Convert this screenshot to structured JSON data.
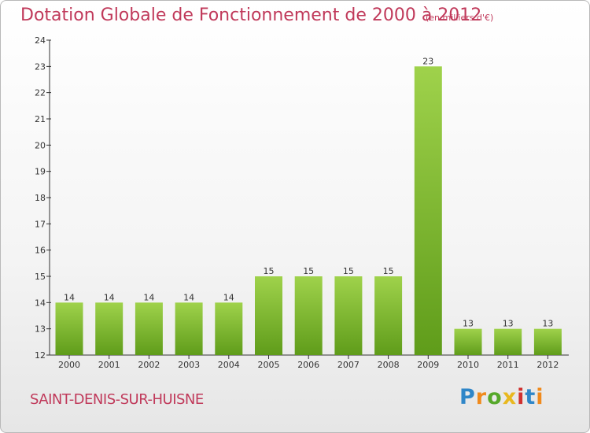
{
  "header": {
    "title": "Dotation Globale de Fonctionnement de 2000 à 2012",
    "subtitle": "(en milliers d'€)"
  },
  "footer": {
    "commune": "SAINT-DENIS-SUR-HUISNE",
    "logo_letters": [
      "P",
      "r",
      "o",
      "x",
      "i",
      "t",
      "i"
    ],
    "logo_colors": [
      "#2f86c8",
      "#f08a1c",
      "#56a82a",
      "#e8b81f",
      "#d0302f",
      "#2f86c8",
      "#f08a1c"
    ]
  },
  "colors": {
    "title": "#c0395a",
    "bar_light": "#9fd24b",
    "bar_dark": "#5f9c1a",
    "axis": "#333333"
  },
  "chart_data": {
    "type": "bar",
    "categories": [
      "2000",
      "2001",
      "2002",
      "2003",
      "2004",
      "2005",
      "2006",
      "2007",
      "2008",
      "2009",
      "2010",
      "2011",
      "2012"
    ],
    "values": [
      14,
      14,
      14,
      14,
      14,
      15,
      15,
      15,
      15,
      23,
      13,
      13,
      13
    ],
    "data_labels": [
      "14",
      "14",
      "14",
      "14",
      "14",
      "15",
      "15",
      "15",
      "15",
      "23",
      "13",
      "13",
      "13"
    ],
    "yticks": [
      "12",
      "13",
      "14",
      "15",
      "16",
      "17",
      "18",
      "19",
      "20",
      "21",
      "22",
      "23",
      "24"
    ],
    "ylim": [
      12,
      24
    ],
    "title": "Dotation Globale de Fonctionnement de 2000 à 2012",
    "subtitle": "(en milliers d'€)",
    "xlabel": "",
    "ylabel": "",
    "grid": false,
    "legend": false
  }
}
